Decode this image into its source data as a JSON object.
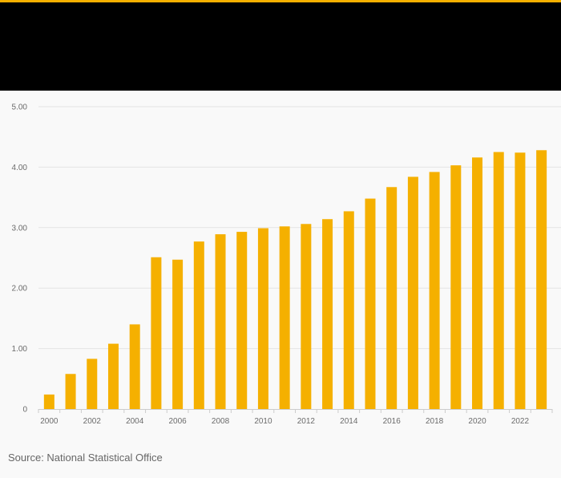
{
  "colors": {
    "accent": "#f5b000",
    "bar": "#f5b000",
    "header_band": "#000000",
    "background": "#f9f9f9",
    "gridline": "#e4e4e4",
    "axis_line": "#cccccc"
  },
  "source": "Source: National Statistical Office",
  "chart_data": {
    "type": "bar",
    "title": "",
    "xlabel": "",
    "ylabel": "",
    "categories": [
      "2000",
      "2001",
      "2002",
      "2003",
      "2004",
      "2005",
      "2006",
      "2007",
      "2008",
      "2009",
      "2010",
      "2011",
      "2012",
      "2013",
      "2014",
      "2015",
      "2016",
      "2017",
      "2018",
      "2019",
      "2020",
      "2021",
      "2022",
      "2023"
    ],
    "values": [
      0.24,
      0.58,
      0.83,
      1.08,
      1.4,
      2.51,
      2.47,
      2.77,
      2.89,
      2.93,
      2.99,
      3.02,
      3.06,
      3.14,
      3.27,
      3.48,
      3.67,
      3.84,
      3.92,
      4.03,
      4.16,
      4.25,
      4.24,
      4.28
    ],
    "ylim": [
      0,
      5
    ],
    "y_ticks": [
      0,
      1,
      2,
      3,
      4,
      5
    ],
    "y_tick_labels": [
      "0",
      "1.00",
      "2.00",
      "3.00",
      "4.00",
      "5.00"
    ],
    "x_tick_labels": [
      "2000",
      "2002",
      "2004",
      "2006",
      "2008",
      "2010",
      "2012",
      "2014",
      "2016",
      "2018",
      "2020",
      "2022"
    ],
    "grid": true,
    "legend": "none"
  }
}
